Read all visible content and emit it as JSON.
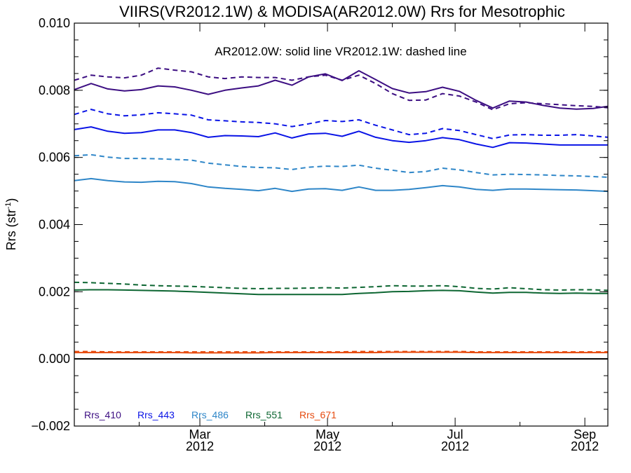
{
  "chart_data": {
    "type": "line",
    "title": "VIIRS(VR2012.1W) & MODISA(AR2012.0W)  Rrs for Mesotrophic",
    "subtitle": "AR2012.0W: solid line   VR2012.1W: dashed line",
    "ylabel_main": "Rrs (str",
    "ylabel_sup": "-1",
    "ylabel_close": ")",
    "ylim": [
      -0.002,
      0.01
    ],
    "yticks": [
      {
        "value": -0.002,
        "label": "−0.002"
      },
      {
        "value": 0.0,
        "label": "0.000"
      },
      {
        "value": 0.002,
        "label": "0.002"
      },
      {
        "value": 0.004,
        "label": "0.004"
      },
      {
        "value": 0.006,
        "label": "0.006"
      },
      {
        "value": 0.008,
        "label": "0.008"
      },
      {
        "value": 0.01,
        "label": "0.010"
      }
    ],
    "xlim": [
      "2012-01-01",
      "2012-09-12"
    ],
    "xticks": [
      {
        "date": "2012-03-01",
        "month": "Mar",
        "year": "2012"
      },
      {
        "date": "2012-05-01",
        "month": "May",
        "year": "2012"
      },
      {
        "date": "2012-07-01",
        "month": "Jul",
        "year": "2012"
      },
      {
        "date": "2012-09-01",
        "month": "Sep",
        "year": "2012"
      }
    ],
    "x": [
      "2012-01-01",
      "2012-01-09",
      "2012-01-17",
      "2012-01-25",
      "2012-02-02",
      "2012-02-10",
      "2012-02-18",
      "2012-02-26",
      "2012-03-05",
      "2012-03-13",
      "2012-03-21",
      "2012-03-29",
      "2012-04-06",
      "2012-04-14",
      "2012-04-22",
      "2012-04-30",
      "2012-05-08",
      "2012-05-16",
      "2012-05-24",
      "2012-06-01",
      "2012-06-09",
      "2012-06-17",
      "2012-06-25",
      "2012-07-03",
      "2012-07-11",
      "2012-07-19",
      "2012-07-27",
      "2012-08-04",
      "2012-08-12",
      "2012-08-20",
      "2012-08-28",
      "2012-09-05",
      "2012-09-12"
    ],
    "zero_line": 0,
    "series": [
      {
        "name": "Rrs_410",
        "version": "AR2012.0W",
        "style": "solid",
        "color": "#3c0e82",
        "values": [
          0.00802,
          0.0082,
          0.00804,
          0.00798,
          0.00802,
          0.00813,
          0.0081,
          0.008,
          0.00788,
          0.008,
          0.00807,
          0.00813,
          0.0083,
          0.00815,
          0.0084,
          0.00849,
          0.00829,
          0.00858,
          0.00832,
          0.00805,
          0.00792,
          0.00796,
          0.00809,
          0.00797,
          0.0077,
          0.00747,
          0.00768,
          0.00765,
          0.00755,
          0.00747,
          0.00744,
          0.00746,
          0.00752
        ]
      },
      {
        "name": "Rrs_410",
        "version": "VR2012.1W",
        "style": "dashed",
        "color": "#3c0e82",
        "values": [
          0.0083,
          0.00845,
          0.0084,
          0.00837,
          0.00845,
          0.00866,
          0.0086,
          0.00855,
          0.0084,
          0.00835,
          0.0084,
          0.00838,
          0.00838,
          0.0083,
          0.0084,
          0.00845,
          0.0083,
          0.00845,
          0.0082,
          0.0079,
          0.0077,
          0.00771,
          0.0079,
          0.00783,
          0.00765,
          0.00742,
          0.0076,
          0.00763,
          0.0076,
          0.00757,
          0.00754,
          0.00752,
          0.00748
        ]
      },
      {
        "name": "Rrs_443",
        "version": "AR2012.0W",
        "style": "solid",
        "color": "#0a14e6",
        "values": [
          0.00683,
          0.00691,
          0.00678,
          0.00672,
          0.00674,
          0.00682,
          0.00682,
          0.00674,
          0.0066,
          0.00665,
          0.00664,
          0.00662,
          0.00673,
          0.00658,
          0.0067,
          0.00672,
          0.00663,
          0.00678,
          0.0066,
          0.0065,
          0.00645,
          0.0065,
          0.00659,
          0.00653,
          0.0064,
          0.0063,
          0.00644,
          0.00643,
          0.0064,
          0.00637,
          0.00637,
          0.00637,
          0.00637
        ]
      },
      {
        "name": "Rrs_443",
        "version": "VR2012.1W",
        "style": "dashed",
        "color": "#0a14e6",
        "values": [
          0.00728,
          0.00743,
          0.0073,
          0.00724,
          0.00727,
          0.00733,
          0.0073,
          0.00726,
          0.00712,
          0.00709,
          0.00706,
          0.00704,
          0.007,
          0.00692,
          0.007,
          0.0071,
          0.00707,
          0.00712,
          0.00696,
          0.00682,
          0.00668,
          0.00672,
          0.00686,
          0.0068,
          0.00668,
          0.00656,
          0.00667,
          0.00668,
          0.00666,
          0.00666,
          0.00668,
          0.00664,
          0.0066
        ]
      },
      {
        "name": "Rrs_486",
        "version": "AR2012.0W",
        "style": "solid",
        "color": "#2e86c8",
        "values": [
          0.00531,
          0.00537,
          0.00531,
          0.00527,
          0.00526,
          0.00529,
          0.00528,
          0.00522,
          0.00512,
          0.00508,
          0.00505,
          0.00501,
          0.00508,
          0.00499,
          0.00506,
          0.00507,
          0.00502,
          0.00512,
          0.00502,
          0.00502,
          0.00505,
          0.0051,
          0.00516,
          0.00512,
          0.00505,
          0.00502,
          0.00506,
          0.00506,
          0.00505,
          0.00504,
          0.00503,
          0.00501,
          0.00499
        ]
      },
      {
        "name": "Rrs_486",
        "version": "VR2012.1W",
        "style": "dashed",
        "color": "#2e86c8",
        "values": [
          0.00605,
          0.00608,
          0.00601,
          0.00597,
          0.00597,
          0.00596,
          0.00594,
          0.00592,
          0.00583,
          0.00578,
          0.00573,
          0.0057,
          0.00569,
          0.00564,
          0.00571,
          0.00574,
          0.00573,
          0.00577,
          0.00568,
          0.00562,
          0.00555,
          0.00558,
          0.00568,
          0.00563,
          0.00555,
          0.00548,
          0.0055,
          0.00549,
          0.00548,
          0.00546,
          0.00545,
          0.00543,
          0.00541
        ]
      },
      {
        "name": "Rrs_551",
        "version": "AR2012.0W",
        "style": "solid",
        "color": "#0d6632",
        "values": [
          0.00205,
          0.00206,
          0.00206,
          0.00205,
          0.00204,
          0.00203,
          0.00202,
          0.002,
          0.00198,
          0.00196,
          0.00194,
          0.00192,
          0.00192,
          0.00192,
          0.00192,
          0.00192,
          0.00192,
          0.00195,
          0.00197,
          0.002,
          0.00201,
          0.00203,
          0.00204,
          0.00203,
          0.00199,
          0.00196,
          0.00198,
          0.00198,
          0.00196,
          0.00195,
          0.00196,
          0.00195,
          0.00195
        ]
      },
      {
        "name": "Rrs_551",
        "version": "VR2012.1W",
        "style": "dashed",
        "color": "#0d6632",
        "values": [
          0.00228,
          0.00227,
          0.00225,
          0.00223,
          0.0022,
          0.00218,
          0.00217,
          0.00216,
          0.00214,
          0.00212,
          0.0021,
          0.00209,
          0.0021,
          0.0021,
          0.00211,
          0.00212,
          0.00211,
          0.00213,
          0.00215,
          0.00218,
          0.00217,
          0.00217,
          0.00218,
          0.00215,
          0.0021,
          0.00208,
          0.00212,
          0.00209,
          0.00206,
          0.00205,
          0.00206,
          0.00206,
          0.00204
        ]
      },
      {
        "name": "Rrs_671",
        "version": "AR2012.0W",
        "style": "solid",
        "color": "#e64b0f",
        "values": [
          0.00019,
          0.00019,
          0.00019,
          0.00019,
          0.00019,
          0.00019,
          0.00019,
          0.00018,
          0.00018,
          0.00018,
          0.00018,
          0.00018,
          0.00019,
          0.00019,
          0.00019,
          0.00019,
          0.00019,
          0.00019,
          0.00019,
          0.0002,
          0.0002,
          0.0002,
          0.0002,
          0.0002,
          0.00019,
          0.00019,
          0.00019,
          0.00019,
          0.00019,
          0.00019,
          0.00019,
          0.00019,
          0.00019
        ]
      },
      {
        "name": "Rrs_671",
        "version": "VR2012.1W",
        "style": "dashed",
        "color": "#e64b0f",
        "values": [
          0.00022,
          0.00022,
          0.00021,
          0.00021,
          0.00021,
          0.00021,
          0.00021,
          0.00021,
          0.00021,
          0.00021,
          0.00021,
          0.00021,
          0.00021,
          0.00021,
          0.00021,
          0.00021,
          0.00021,
          0.00022,
          0.00022,
          0.00022,
          0.00022,
          0.00022,
          0.00022,
          0.00022,
          0.00021,
          0.00021,
          0.00021,
          0.00021,
          0.00021,
          0.00021,
          0.00021,
          0.00021,
          0.00021
        ]
      }
    ],
    "legend": [
      {
        "label": "Rrs_410",
        "color": "#3c0e82"
      },
      {
        "label": "Rrs_443",
        "color": "#0a14e6"
      },
      {
        "label": "Rrs_486",
        "color": "#2e86c8"
      },
      {
        "label": "Rrs_551",
        "color": "#0d6632"
      },
      {
        "label": "Rrs_671",
        "color": "#e64b0f"
      }
    ],
    "legend_position": "bottom-left"
  }
}
